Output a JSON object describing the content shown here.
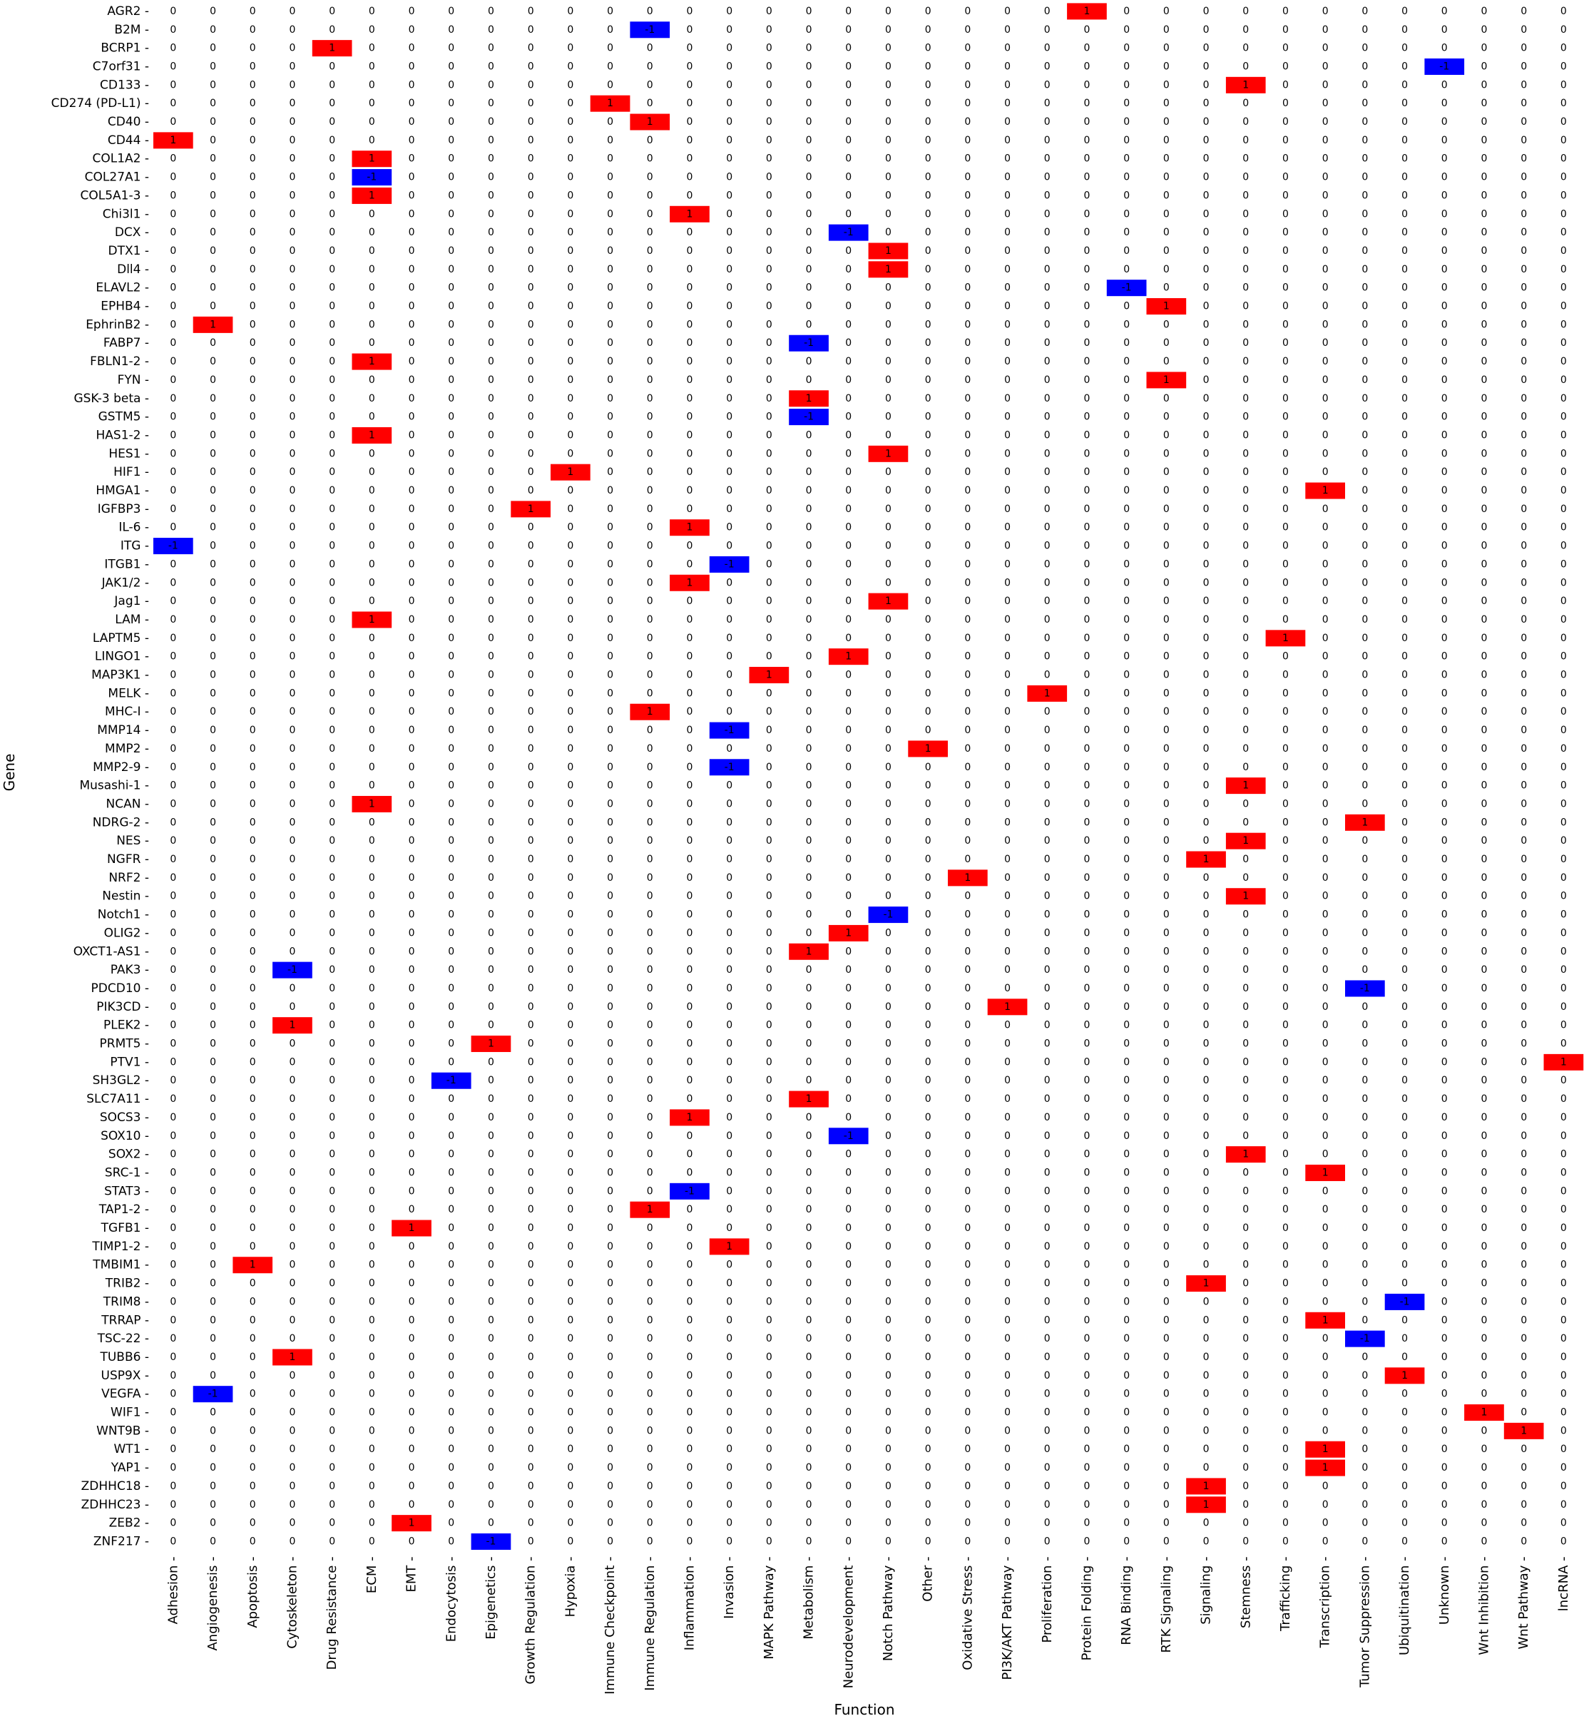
{
  "chart_data": {
    "type": "heatmap",
    "title": "",
    "xlabel": "Function",
    "ylabel": "Gene",
    "colors": {
      "positive": "#ff0000",
      "negative": "#0000ff",
      "zero": "#ffffff"
    },
    "columns": [
      "Adhesion",
      "Angiogenesis",
      "Apoptosis",
      "Cytoskeleton",
      "Drug Resistance",
      "ECM",
      "EMT",
      "Endocytosis",
      "Epigenetics",
      "Growth Regulation",
      "Hypoxia",
      "Immune Checkpoint",
      "Immune Regulation",
      "Inflammation",
      "Invasion",
      "MAPK Pathway",
      "Metabolism",
      "Neurodevelopment",
      "Notch Pathway",
      "Other",
      "Oxidative Stress",
      "PI3K/AKT Pathway",
      "Proliferation",
      "Protein Folding",
      "RNA Binding",
      "RTK Signaling",
      "Signaling",
      "Stemness",
      "Trafficking",
      "Transcription",
      "Tumor Suppression",
      "Ubiquitination",
      "Unknown",
      "Wnt Inhibition",
      "Wnt Pathway",
      "lncRNA"
    ],
    "rows": [
      "AGR2",
      "B2M",
      "BCRP1",
      "C7orf31",
      "CD133",
      "CD274 (PD-L1)",
      "CD40",
      "CD44",
      "COL1A2",
      "COL27A1",
      "COL5A1-3",
      "Chi3l1",
      "DCX",
      "DTX1",
      "Dll4",
      "ELAVL2",
      "EPHB4",
      "EphrinB2",
      "FABP7",
      "FBLN1-2",
      "FYN",
      "GSK-3 beta",
      "GSTM5",
      "HAS1-2",
      "HES1",
      "HIF1",
      "HMGA1",
      "IGFBP3",
      "IL-6",
      "ITG",
      "ITGB1",
      "JAK1/2",
      "Jag1",
      "LAM",
      "LAPTM5",
      "LINGO1",
      "MAP3K1",
      "MELK",
      "MHC-I",
      "MMP14",
      "MMP2",
      "MMP2-9",
      "Musashi-1",
      "NCAN",
      "NDRG-2",
      "NES",
      "NGFR",
      "NRF2",
      "Nestin",
      "Notch1",
      "OLIG2",
      "OXCT1-AS1",
      "PAK3",
      "PDCD10",
      "PIK3CD",
      "PLEK2",
      "PRMT5",
      "PTV1",
      "SH3GL2",
      "SLC7A11",
      "SOCS3",
      "SOX10",
      "SOX2",
      "SRC-1",
      "STAT3",
      "TAP1-2",
      "TGFB1",
      "TIMP1-2",
      "TMBIM1",
      "TRIB2",
      "TRIM8",
      "TRRAP",
      "TSC-22",
      "TUBB6",
      "USP9X",
      "VEGFA",
      "WIF1",
      "WNT9B",
      "WT1",
      "YAP1",
      "ZDHHC18",
      "ZDHHC23",
      "ZEB2",
      "ZNF217"
    ],
    "nonzero": [
      {
        "row": "AGR2",
        "col": "Protein Folding",
        "value": 1
      },
      {
        "row": "B2M",
        "col": "Immune Regulation",
        "value": -1
      },
      {
        "row": "BCRP1",
        "col": "Drug Resistance",
        "value": 1
      },
      {
        "row": "C7orf31",
        "col": "Unknown",
        "value": -1
      },
      {
        "row": "CD133",
        "col": "Stemness",
        "value": 1
      },
      {
        "row": "CD274 (PD-L1)",
        "col": "Immune Checkpoint",
        "value": 1
      },
      {
        "row": "CD40",
        "col": "Immune Regulation",
        "value": 1
      },
      {
        "row": "CD44",
        "col": "Adhesion",
        "value": 1
      },
      {
        "row": "COL1A2",
        "col": "ECM",
        "value": 1
      },
      {
        "row": "COL27A1",
        "col": "ECM",
        "value": -1
      },
      {
        "row": "COL5A1-3",
        "col": "ECM",
        "value": 1
      },
      {
        "row": "Chi3l1",
        "col": "Inflammation",
        "value": 1
      },
      {
        "row": "DCX",
        "col": "Neurodevelopment",
        "value": -1
      },
      {
        "row": "DTX1",
        "col": "Notch Pathway",
        "value": 1
      },
      {
        "row": "Dll4",
        "col": "Notch Pathway",
        "value": 1
      },
      {
        "row": "ELAVL2",
        "col": "RNA Binding",
        "value": -1
      },
      {
        "row": "EPHB4",
        "col": "RTK Signaling",
        "value": 1
      },
      {
        "row": "EphrinB2",
        "col": "Angiogenesis",
        "value": 1
      },
      {
        "row": "FABP7",
        "col": "Metabolism",
        "value": -1
      },
      {
        "row": "FBLN1-2",
        "col": "ECM",
        "value": 1
      },
      {
        "row": "FYN",
        "col": "RTK Signaling",
        "value": 1
      },
      {
        "row": "GSK-3 beta",
        "col": "Metabolism",
        "value": 1
      },
      {
        "row": "GSTM5",
        "col": "Metabolism",
        "value": -1
      },
      {
        "row": "HAS1-2",
        "col": "ECM",
        "value": 1
      },
      {
        "row": "HES1",
        "col": "Notch Pathway",
        "value": 1
      },
      {
        "row": "HIF1",
        "col": "Hypoxia",
        "value": 1
      },
      {
        "row": "HMGA1",
        "col": "Transcription",
        "value": 1
      },
      {
        "row": "IGFBP3",
        "col": "Growth Regulation",
        "value": 1
      },
      {
        "row": "IL-6",
        "col": "Inflammation",
        "value": 1
      },
      {
        "row": "ITG",
        "col": "Adhesion",
        "value": -1
      },
      {
        "row": "ITGB1",
        "col": "Invasion",
        "value": -1
      },
      {
        "row": "JAK1/2",
        "col": "Inflammation",
        "value": 1
      },
      {
        "row": "Jag1",
        "col": "Notch Pathway",
        "value": 1
      },
      {
        "row": "LAM",
        "col": "ECM",
        "value": 1
      },
      {
        "row": "LAPTM5",
        "col": "Trafficking",
        "value": 1
      },
      {
        "row": "LINGO1",
        "col": "Neurodevelopment",
        "value": 1
      },
      {
        "row": "MAP3K1",
        "col": "MAPK Pathway",
        "value": 1
      },
      {
        "row": "MELK",
        "col": "Proliferation",
        "value": 1
      },
      {
        "row": "MHC-I",
        "col": "Immune Regulation",
        "value": 1
      },
      {
        "row": "MMP14",
        "col": "Invasion",
        "value": -1
      },
      {
        "row": "MMP2",
        "col": "Other",
        "value": 1
      },
      {
        "row": "MMP2-9",
        "col": "Invasion",
        "value": -1
      },
      {
        "row": "Musashi-1",
        "col": "Stemness",
        "value": 1
      },
      {
        "row": "NCAN",
        "col": "ECM",
        "value": 1
      },
      {
        "row": "NDRG-2",
        "col": "Tumor Suppression",
        "value": 1
      },
      {
        "row": "NES",
        "col": "Stemness",
        "value": 1
      },
      {
        "row": "NGFR",
        "col": "Signaling",
        "value": 1
      },
      {
        "row": "NRF2",
        "col": "Oxidative Stress",
        "value": 1
      },
      {
        "row": "Nestin",
        "col": "Stemness",
        "value": 1
      },
      {
        "row": "Notch1",
        "col": "Notch Pathway",
        "value": -1
      },
      {
        "row": "OLIG2",
        "col": "Neurodevelopment",
        "value": 1
      },
      {
        "row": "OXCT1-AS1",
        "col": "Metabolism",
        "value": 1
      },
      {
        "row": "PAK3",
        "col": "Cytoskeleton",
        "value": -1
      },
      {
        "row": "PDCD10",
        "col": "Tumor Suppression",
        "value": -1
      },
      {
        "row": "PIK3CD",
        "col": "PI3K/AKT Pathway",
        "value": 1
      },
      {
        "row": "PLEK2",
        "col": "Cytoskeleton",
        "value": 1
      },
      {
        "row": "PRMT5",
        "col": "Epigenetics",
        "value": 1
      },
      {
        "row": "PTV1",
        "col": "lncRNA",
        "value": 1
      },
      {
        "row": "SH3GL2",
        "col": "Endocytosis",
        "value": -1
      },
      {
        "row": "SLC7A11",
        "col": "Metabolism",
        "value": 1
      },
      {
        "row": "SOCS3",
        "col": "Inflammation",
        "value": 1
      },
      {
        "row": "SOX10",
        "col": "Neurodevelopment",
        "value": -1
      },
      {
        "row": "SOX2",
        "col": "Stemness",
        "value": 1
      },
      {
        "row": "SRC-1",
        "col": "Transcription",
        "value": 1
      },
      {
        "row": "STAT3",
        "col": "Inflammation",
        "value": -1
      },
      {
        "row": "TAP1-2",
        "col": "Immune Regulation",
        "value": 1
      },
      {
        "row": "TGFB1",
        "col": "EMT",
        "value": 1
      },
      {
        "row": "TIMP1-2",
        "col": "Invasion",
        "value": 1
      },
      {
        "row": "TMBIM1",
        "col": "Apoptosis",
        "value": 1
      },
      {
        "row": "TRIB2",
        "col": "Signaling",
        "value": 1
      },
      {
        "row": "TRIM8",
        "col": "Ubiquitination",
        "value": -1
      },
      {
        "row": "TRRAP",
        "col": "Transcription",
        "value": 1
      },
      {
        "row": "TSC-22",
        "col": "Tumor Suppression",
        "value": -1
      },
      {
        "row": "TUBB6",
        "col": "Cytoskeleton",
        "value": 1
      },
      {
        "row": "USP9X",
        "col": "Ubiquitination",
        "value": 1
      },
      {
        "row": "VEGFA",
        "col": "Angiogenesis",
        "value": -1
      },
      {
        "row": "WIF1",
        "col": "Wnt Inhibition",
        "value": 1
      },
      {
        "row": "WNT9B",
        "col": "Wnt Pathway",
        "value": 1
      },
      {
        "row": "WT1",
        "col": "Transcription",
        "value": 1
      },
      {
        "row": "YAP1",
        "col": "Transcription",
        "value": 1
      },
      {
        "row": "ZDHHC18",
        "col": "Signaling",
        "value": 1
      },
      {
        "row": "ZDHHC23",
        "col": "Signaling",
        "value": 1
      },
      {
        "row": "ZEB2",
        "col": "EMT",
        "value": 1
      },
      {
        "row": "ZNF217",
        "col": "Epigenetics",
        "value": -1
      }
    ]
  }
}
